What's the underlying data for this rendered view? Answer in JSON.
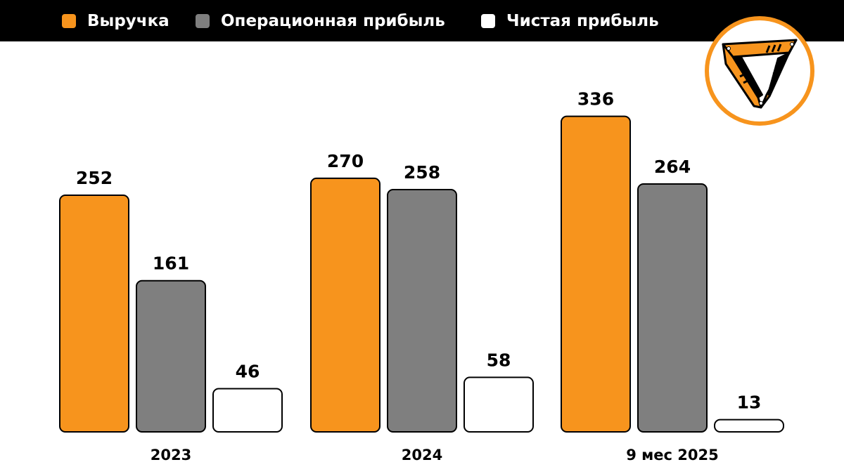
{
  "legend": [
    {
      "label": "Выручка",
      "color": "#F7941D"
    },
    {
      "label": "Операционная прибыль",
      "color": "#7F7F7F"
    },
    {
      "label": "Чистая прибыль",
      "color": "#FFFFFF"
    }
  ],
  "logo": {
    "icon": "triangle-logo-icon"
  },
  "chart_data": {
    "type": "bar",
    "categories": [
      "2023",
      "2024",
      "9 мес 2025"
    ],
    "series": [
      {
        "name": "Выручка",
        "values": [
          252,
          270,
          336
        ],
        "color": "#F7941D"
      },
      {
        "name": "Операционная прибыль",
        "values": [
          161,
          258,
          264
        ],
        "color": "#7F7F7F"
      },
      {
        "name": "Чистая прибыль",
        "values": [
          46,
          58,
          13
        ],
        "color": "#FFFFFF"
      }
    ],
    "title": "",
    "xlabel": "",
    "ylabel": "",
    "ylim": [
      0,
      360
    ],
    "grid": false,
    "legend_position": "top"
  }
}
